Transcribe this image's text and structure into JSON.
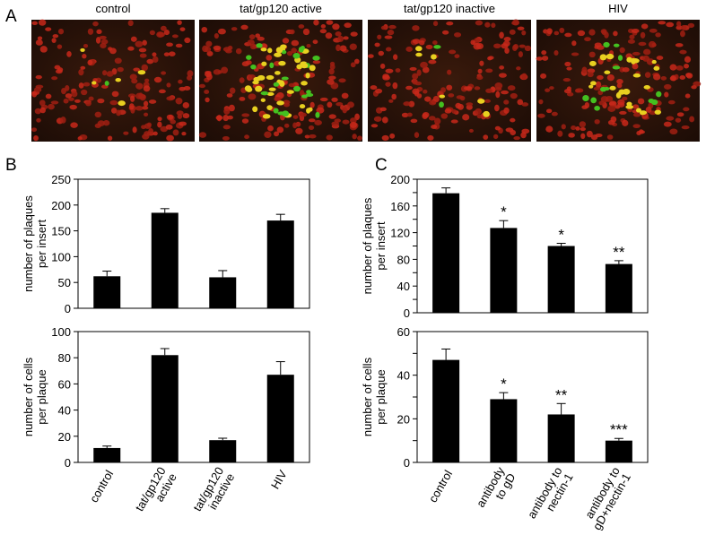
{
  "panel_labels": [
    "A",
    "B",
    "C"
  ],
  "image_captions": [
    "control",
    "tat/gp120 active",
    "tat/gp120 inactive",
    "HIV"
  ],
  "chart_data": [
    {
      "type": "bar",
      "ylabel": [
        "number of plaques",
        "per insert"
      ],
      "values": [
        62,
        185,
        60,
        170
      ],
      "errors": [
        10,
        8,
        13,
        12
      ],
      "color": "#000000",
      "ylim": [
        0,
        250
      ],
      "yticks": [
        0,
        50,
        100,
        150,
        200,
        250
      ]
    },
    {
      "type": "bar",
      "ylabel": [
        "number of cells",
        "per plaque"
      ],
      "values": [
        11,
        82,
        17,
        67
      ],
      "errors": [
        1.5,
        5,
        1.5,
        10
      ],
      "color": "#000000",
      "ylim": [
        0,
        100
      ],
      "yticks": [
        0,
        20,
        40,
        60,
        80,
        100
      ],
      "categories": [
        [
          "control"
        ],
        [
          "tat/gp120",
          "active"
        ],
        [
          "tat/gp120",
          "inactive"
        ],
        [
          "HIV"
        ]
      ]
    },
    {
      "type": "bar",
      "ylabel": [
        "number of plaques",
        "per insert"
      ],
      "values": [
        179,
        127,
        100,
        73
      ],
      "errors": [
        8,
        11,
        4,
        5
      ],
      "color": "#000000",
      "ylim": [
        0,
        200
      ],
      "yticks": [
        0,
        40,
        80,
        120,
        160,
        200
      ],
      "yminorticks": [
        20,
        60,
        100,
        140,
        180
      ],
      "annotations": [
        null,
        "*",
        "*",
        "**"
      ]
    },
    {
      "type": "bar",
      "ylabel": [
        "number of cells",
        "per plaque"
      ],
      "values": [
        47,
        29,
        22,
        10
      ],
      "errors": [
        5,
        3,
        5,
        1
      ],
      "color": "#000000",
      "ylim": [
        0,
        60
      ],
      "yticks": [
        0,
        20,
        40,
        60
      ],
      "yminorticks": [
        10,
        30,
        50
      ],
      "annotations": [
        null,
        "*",
        "**",
        "***"
      ],
      "categories": [
        [
          "control"
        ],
        [
          "antibody",
          "to gD"
        ],
        [
          "antibody to",
          "nectin-1"
        ],
        [
          "antibody to",
          "gD+nectin-1"
        ]
      ]
    }
  ]
}
